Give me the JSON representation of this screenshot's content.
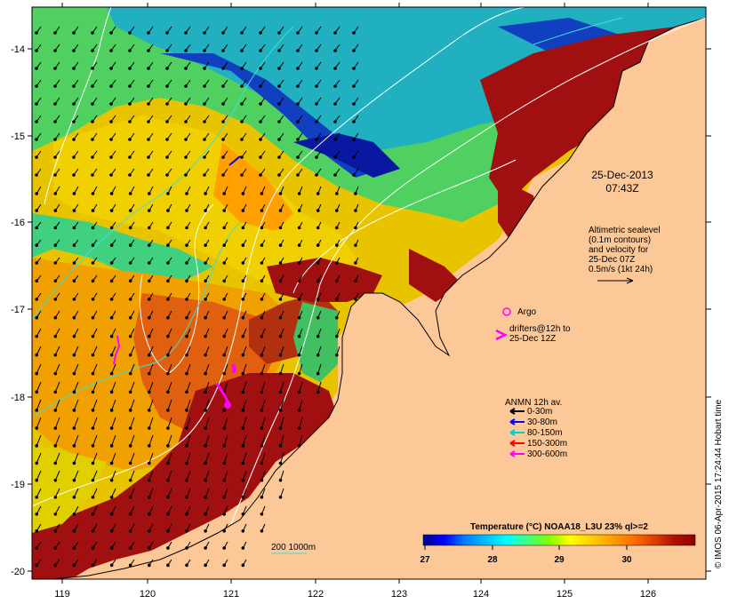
{
  "map": {
    "date_label": "25-Dec-2013",
    "time_label": "07:43Z",
    "lon_ticks": [
      "119",
      "120",
      "121",
      "122",
      "123",
      "124",
      "125",
      "126"
    ],
    "lat_ticks": [
      "-14",
      "-15",
      "-16",
      "-17",
      "-18",
      "-19",
      "-20"
    ],
    "altimetry_lines": [
      "Altimetric sealevel",
      "(0.1m contours)",
      "and velocity for",
      "25-Dec 07Z",
      "0.5m/s (1kt 24h)"
    ],
    "argo_label": "Argo",
    "drifters_lines": [
      "drifters@12h to",
      "25-Dec 12Z"
    ],
    "anmn_title": "ANMN 12h av.",
    "anmn_legend": [
      {
        "label": "0-30m",
        "color": "#000000"
      },
      {
        "label": "30-80m",
        "color": "#0000ff"
      },
      {
        "label": "80-150m",
        "color": "#00d0d0"
      },
      {
        "label": "150-300m",
        "color": "#ff0000"
      },
      {
        "label": "300-600m",
        "color": "#ff00ff"
      }
    ],
    "isobath_label": "200  1000m",
    "colorbar": {
      "title": "Temperature (°C) NOAA18_L3U 23% ql>=2",
      "ticks": [
        "27",
        "28",
        "29",
        "30"
      ],
      "colors": [
        "#00008b",
        "#0000ff",
        "#0080ff",
        "#00c0ff",
        "#00ffff",
        "#40ff80",
        "#80ff00",
        "#ffff00",
        "#ffd000",
        "#ffa000",
        "#ff7000",
        "#e04000",
        "#b01000",
        "#900000"
      ]
    },
    "credit": "© IMOS 06-Apr-2015 17:24:44 Hobart time",
    "land_color": "#fcc898"
  }
}
